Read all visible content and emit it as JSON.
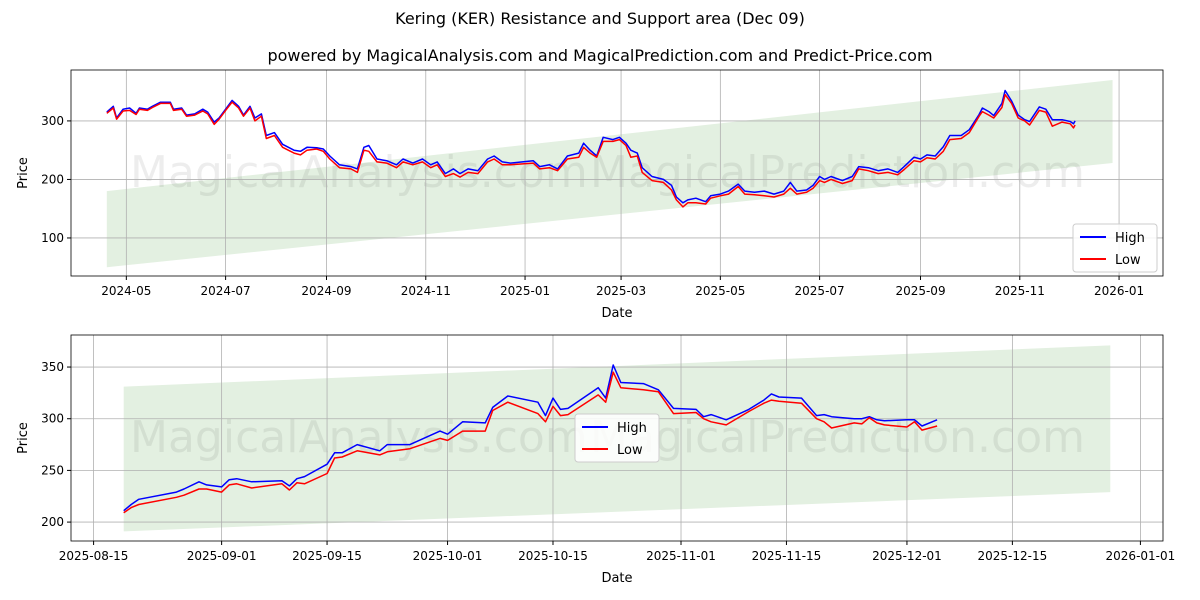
{
  "title": "Kering (KER) Resistance and Support area (Dec 09)",
  "subtitle": "powered by MagicalAnalysis.com and MagicalPrediction.com and Predict-Price.com",
  "watermark": [
    "MagicalAnalysis.com",
    "MagicalPrediction.com"
  ],
  "colors": {
    "high": "#0000ff",
    "low": "#ff0000",
    "band": "#e3f0e1"
  },
  "chart_data": [
    {
      "type": "line",
      "xlabel": "Date",
      "ylabel": "Price",
      "ylim": [
        35,
        387
      ],
      "xlim": [
        "2024-03-28",
        "2026-01-28"
      ],
      "yticks": [
        100,
        200,
        300
      ],
      "xticks": [
        [
          "2024-05-01",
          "2024-05"
        ],
        [
          "2024-07-01",
          "2024-07"
        ],
        [
          "2024-09-01",
          "2024-09"
        ],
        [
          "2024-11-01",
          "2024-11"
        ],
        [
          "2025-01-01",
          "2025-01"
        ],
        [
          "2025-03-01",
          "2025-03"
        ],
        [
          "2025-05-01",
          "2025-05"
        ],
        [
          "2025-07-01",
          "2025-07"
        ],
        [
          "2025-09-01",
          "2025-09"
        ],
        [
          "2025-11-01",
          "2025-11"
        ],
        [
          "2026-01-01",
          "2026-01"
        ]
      ],
      "grid": true,
      "legend": "lower-right",
      "band": {
        "start": "2024-04-19",
        "end": "2025-12-28",
        "upper": [
          180,
          370
        ],
        "lower": [
          50,
          228
        ]
      },
      "x": [
        "2024-04-19",
        "2024-04-23",
        "2024-04-25",
        "2024-04-29",
        "2024-05-03",
        "2024-05-07",
        "2024-05-09",
        "2024-05-14",
        "2024-05-17",
        "2024-05-22",
        "2024-05-28",
        "2024-05-30",
        "2024-06-04",
        "2024-06-07",
        "2024-06-12",
        "2024-06-17",
        "2024-06-20",
        "2024-06-24",
        "2024-06-27",
        "2024-07-01",
        "2024-07-05",
        "2024-07-09",
        "2024-07-12",
        "2024-07-16",
        "2024-07-19",
        "2024-07-23",
        "2024-07-26",
        "2024-07-31",
        "2024-08-05",
        "2024-08-12",
        "2024-08-16",
        "2024-08-20",
        "2024-08-26",
        "2024-08-30",
        "2024-09-03",
        "2024-09-09",
        "2024-09-16",
        "2024-09-20",
        "2024-09-24",
        "2024-09-27",
        "2024-10-02",
        "2024-10-08",
        "2024-10-14",
        "2024-10-18",
        "2024-10-24",
        "2024-10-30",
        "2024-11-04",
        "2024-11-08",
        "2024-11-13",
        "2024-11-18",
        "2024-11-22",
        "2024-11-27",
        "2024-12-03",
        "2024-12-09",
        "2024-12-13",
        "2024-12-18",
        "2024-12-23",
        "2025-01-06",
        "2025-01-10",
        "2025-01-16",
        "2025-01-21",
        "2025-01-27",
        "2025-02-03",
        "2025-02-06",
        "2025-02-10",
        "2025-02-14",
        "2025-02-18",
        "2025-02-24",
        "2025-02-28",
        "2025-03-04",
        "2025-03-07",
        "2025-03-11",
        "2025-03-14",
        "2025-03-20",
        "2025-03-27",
        "2025-04-01",
        "2025-04-04",
        "2025-04-08",
        "2025-04-11",
        "2025-04-16",
        "2025-04-22",
        "2025-04-25",
        "2025-05-01",
        "2025-05-06",
        "2025-05-12",
        "2025-05-16",
        "2025-05-22",
        "2025-05-28",
        "2025-06-03",
        "2025-06-09",
        "2025-06-13",
        "2025-06-17",
        "2025-06-23",
        "2025-06-27",
        "2025-07-01",
        "2025-07-04",
        "2025-07-08",
        "2025-07-15",
        "2025-07-21",
        "2025-07-25",
        "2025-07-31",
        "2025-08-06",
        "2025-08-12",
        "2025-08-18",
        "2025-08-22",
        "2025-08-28",
        "2025-09-01",
        "2025-09-05",
        "2025-09-10",
        "2025-09-15",
        "2025-09-19",
        "2025-09-26",
        "2025-10-01",
        "2025-10-07",
        "2025-10-09",
        "2025-10-13",
        "2025-10-16",
        "2025-10-21",
        "2025-10-23",
        "2025-10-27",
        "2025-10-31",
        "2025-11-04",
        "2025-11-07",
        "2025-11-13",
        "2025-11-17",
        "2025-11-21",
        "2025-11-27",
        "2025-12-02",
        "2025-12-04",
        "2025-12-05"
      ],
      "series": [
        {
          "name": "High",
          "values": [
            315,
            325,
            305,
            320,
            322,
            313,
            322,
            320,
            325,
            332,
            332,
            320,
            322,
            310,
            312,
            320,
            315,
            298,
            305,
            320,
            335,
            325,
            310,
            325,
            305,
            312,
            275,
            280,
            260,
            250,
            248,
            255,
            254,
            252,
            240,
            225,
            222,
            218,
            255,
            258,
            235,
            232,
            225,
            235,
            228,
            235,
            225,
            230,
            210,
            218,
            210,
            218,
            215,
            235,
            240,
            230,
            228,
            232,
            222,
            225,
            218,
            240,
            245,
            262,
            250,
            240,
            272,
            268,
            272,
            262,
            250,
            245,
            220,
            205,
            200,
            190,
            170,
            160,
            165,
            168,
            162,
            172,
            175,
            180,
            192,
            180,
            178,
            180,
            175,
            180,
            195,
            180,
            182,
            190,
            205,
            200,
            205,
            198,
            205,
            222,
            220,
            215,
            218,
            212,
            222,
            238,
            235,
            242,
            240,
            256,
            275,
            275,
            285,
            311,
            322,
            316,
            309,
            330,
            352,
            334,
            310,
            302,
            299,
            324,
            320,
            302,
            302,
            299,
            295,
            300
          ]
        },
        {
          "name": "Low",
          "values": [
            313,
            322,
            303,
            317,
            318,
            311,
            320,
            318,
            323,
            330,
            330,
            318,
            320,
            308,
            310,
            317,
            312,
            294,
            303,
            318,
            332,
            322,
            308,
            322,
            300,
            308,
            270,
            275,
            255,
            245,
            242,
            250,
            252,
            248,
            235,
            220,
            218,
            212,
            250,
            248,
            230,
            228,
            220,
            230,
            225,
            230,
            220,
            225,
            205,
            210,
            204,
            212,
            210,
            230,
            235,
            225,
            225,
            228,
            218,
            220,
            215,
            235,
            238,
            255,
            245,
            238,
            265,
            265,
            268,
            258,
            238,
            240,
            212,
            198,
            195,
            182,
            165,
            153,
            160,
            160,
            158,
            168,
            172,
            175,
            188,
            175,
            174,
            172,
            170,
            175,
            185,
            175,
            178,
            185,
            198,
            195,
            200,
            193,
            198,
            218,
            215,
            210,
            212,
            208,
            217,
            232,
            230,
            237,
            235,
            248,
            268,
            270,
            280,
            308,
            316,
            310,
            305,
            323,
            345,
            330,
            305,
            300,
            293,
            318,
            315,
            291,
            298,
            295,
            288,
            293
          ]
        }
      ]
    },
    {
      "type": "line",
      "xlabel": "Date",
      "ylabel": "Price",
      "ylim": [
        181.7,
        381
      ],
      "xlim": [
        "2025-08-12",
        "2026-01-04"
      ],
      "yticks": [
        200,
        250,
        300,
        350
      ],
      "xticks": [
        [
          "2025-08-15",
          "2025-08-15"
        ],
        [
          "2025-09-01",
          "2025-09-01"
        ],
        [
          "2025-09-15",
          "2025-09-15"
        ],
        [
          "2025-10-01",
          "2025-10-01"
        ],
        [
          "2025-10-15",
          "2025-10-15"
        ],
        [
          "2025-11-01",
          "2025-11-01"
        ],
        [
          "2025-11-15",
          "2025-11-15"
        ],
        [
          "2025-12-01",
          "2025-12-01"
        ],
        [
          "2025-12-15",
          "2025-12-15"
        ],
        [
          "2026-01-01",
          "2026-01-01"
        ]
      ],
      "grid": true,
      "legend": "center",
      "band": {
        "start": "2025-08-19",
        "end": "2025-12-28",
        "upper": [
          331,
          371
        ],
        "lower": [
          191,
          229
        ]
      },
      "x": [
        "2025-08-19",
        "2025-08-20",
        "2025-08-21",
        "2025-08-26",
        "2025-08-27",
        "2025-08-29",
        "2025-08-30",
        "2025-09-01",
        "2025-09-02",
        "2025-09-03",
        "2025-09-05",
        "2025-09-09",
        "2025-09-10",
        "2025-09-11",
        "2025-09-12",
        "2025-09-15",
        "2025-09-16",
        "2025-09-17",
        "2025-09-19",
        "2025-09-22",
        "2025-09-23",
        "2025-09-26",
        "2025-09-30",
        "2025-10-01",
        "2025-10-03",
        "2025-10-06",
        "2025-10-07",
        "2025-10-09",
        "2025-10-13",
        "2025-10-14",
        "2025-10-15",
        "2025-10-16",
        "2025-10-17",
        "2025-10-21",
        "2025-10-22",
        "2025-10-23",
        "2025-10-24",
        "2025-10-27",
        "2025-10-29",
        "2025-10-31",
        "2025-11-03",
        "2025-11-04",
        "2025-11-05",
        "2025-11-07",
        "2025-11-10",
        "2025-11-12",
        "2025-11-13",
        "2025-11-14",
        "2025-11-17",
        "2025-11-19",
        "2025-11-20",
        "2025-11-21",
        "2025-11-24",
        "2025-11-25",
        "2025-11-26",
        "2025-11-27",
        "2025-11-28",
        "2025-12-01",
        "2025-12-02",
        "2025-12-03",
        "2025-12-05"
      ],
      "series": [
        {
          "name": "High",
          "values": [
            211,
            217,
            222,
            229,
            232,
            239,
            236,
            234,
            241,
            242,
            239,
            240,
            235,
            242,
            244,
            256,
            267,
            267,
            275,
            269,
            275,
            275,
            288,
            285,
            297,
            296,
            311,
            322,
            316,
            303,
            320,
            309,
            310,
            330,
            320,
            352,
            335,
            334,
            328,
            310,
            309,
            302,
            304,
            299,
            309,
            318,
            324,
            321,
            320,
            303,
            304,
            302,
            300,
            300,
            302,
            299,
            298,
            299,
            299,
            293,
            299
          ]
        },
        {
          "name": "Low",
          "values": [
            209,
            214,
            217,
            224,
            226,
            232,
            232,
            229,
            236,
            237,
            233,
            237,
            231,
            238,
            237,
            247,
            262,
            263,
            269,
            265,
            268,
            271,
            281,
            279,
            288,
            288,
            308,
            316,
            305,
            297,
            312,
            303,
            304,
            323,
            316,
            345,
            330,
            328,
            326,
            305,
            306,
            300,
            297,
            294,
            307,
            315,
            318,
            317,
            315,
            300,
            297,
            291,
            296,
            295,
            301,
            296,
            294,
            292,
            297,
            289,
            293
          ]
        }
      ]
    }
  ]
}
